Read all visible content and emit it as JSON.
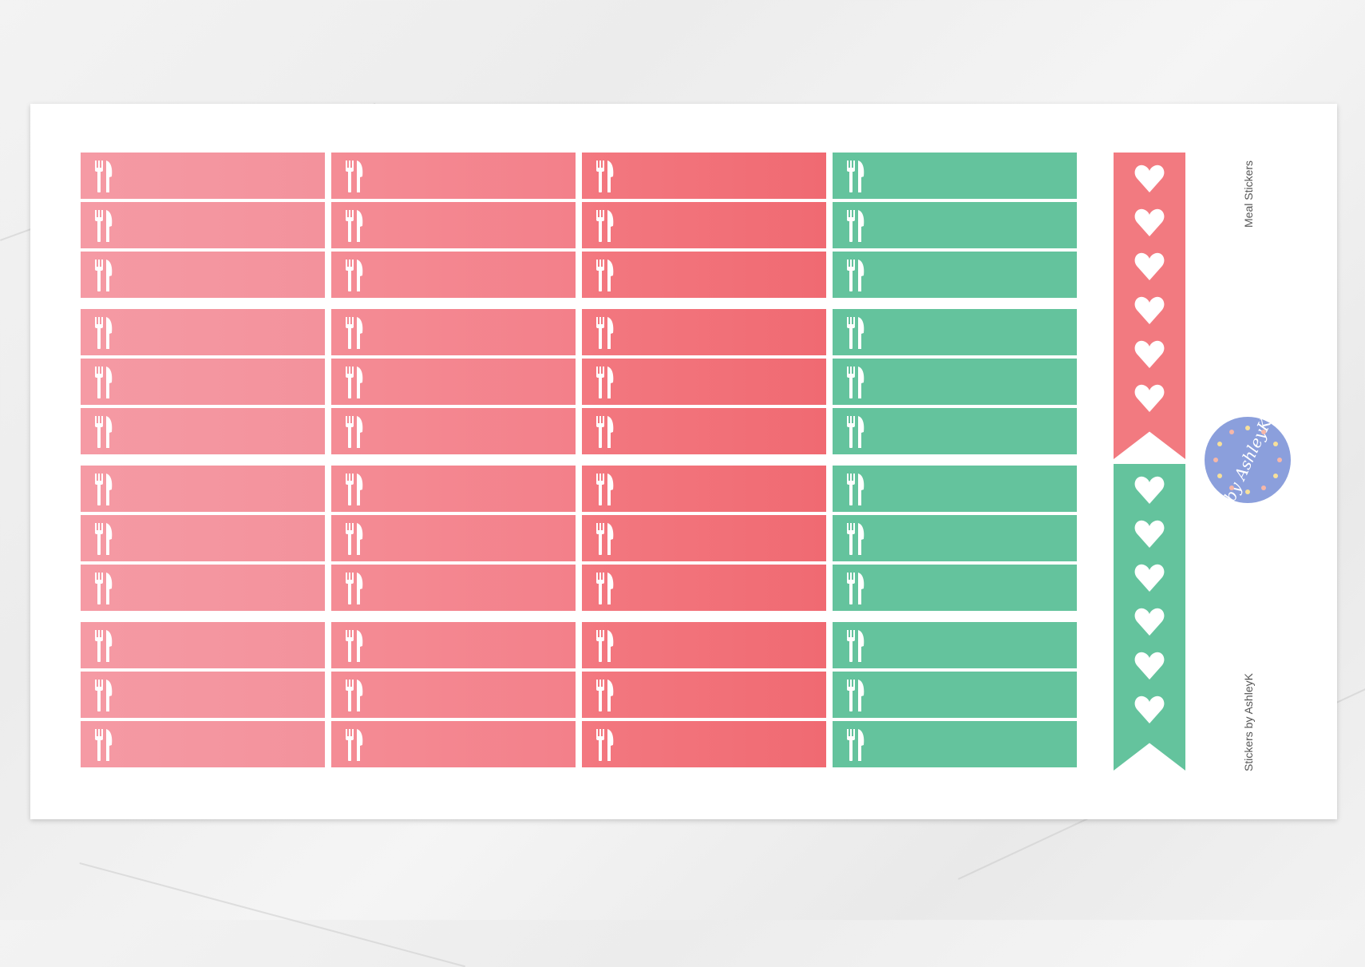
{
  "sheet": {
    "title": "Meal Stickers",
    "credit": "Stickers by AshleyK",
    "logo_text": "by AshleyK",
    "columns": [
      {
        "color_from": "#f59aa4",
        "color_to": "#f3929c"
      },
      {
        "color_from": "#f48c95",
        "color_to": "#f3808a"
      },
      {
        "color_from": "#f37880",
        "color_to": "#f06a72"
      },
      {
        "color_from": "#64c39d",
        "color_to": "#64c39d"
      }
    ],
    "groups": 4,
    "rows_per_group": 3,
    "sticker_icon": "fork-knife-icon",
    "heart_strips": [
      {
        "color": "#f27a80",
        "hearts": 6,
        "icon": "heart-icon"
      },
      {
        "color": "#64c39d",
        "hearts": 6,
        "icon": "heart-icon"
      }
    ],
    "logo_color": "#8b9fdc"
  }
}
